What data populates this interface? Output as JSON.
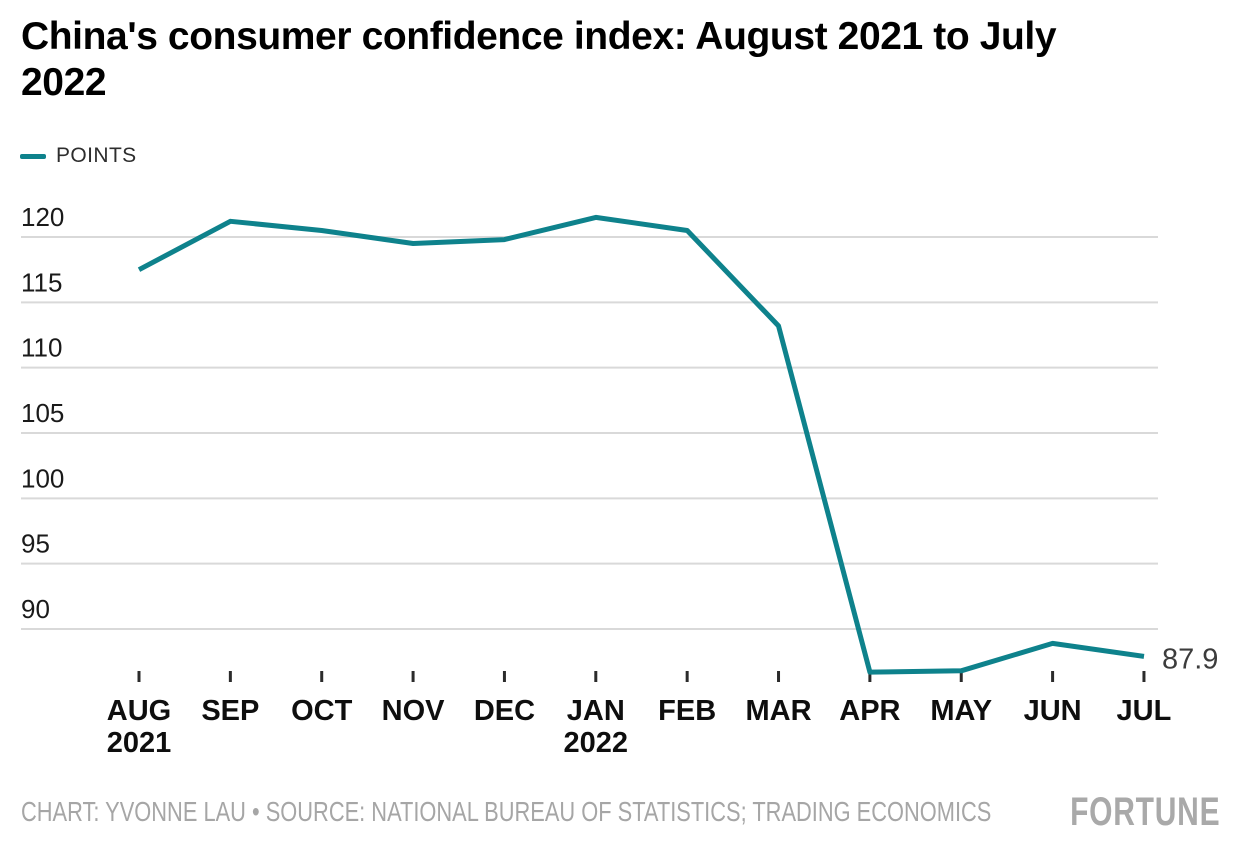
{
  "chart_data": {
    "type": "line",
    "title": "China's consumer confidence index: August 2021 to July 2022",
    "title_lines": [
      "China's consumer confidence index: August 2021 to July",
      "2022"
    ],
    "series_name": "POINTS",
    "categories": [
      "AUG",
      "SEP",
      "OCT",
      "NOV",
      "DEC",
      "JAN",
      "FEB",
      "MAR",
      "APR",
      "MAY",
      "JUN",
      "JUL"
    ],
    "category_year_labels": [
      {
        "index": 0,
        "year": "2021"
      },
      {
        "index": 5,
        "year": "2022"
      }
    ],
    "values": [
      117.5,
      121.2,
      120.5,
      119.5,
      119.8,
      121.5,
      120.5,
      113.2,
      86.7,
      86.8,
      88.9,
      87.9
    ],
    "end_label": "87.9",
    "yticks": [
      120,
      115,
      110,
      105,
      100,
      95,
      90
    ],
    "ylim": [
      85.5,
      122.5
    ],
    "grid": "horizontal-only",
    "legend_position": "top-left",
    "colors": {
      "line": "#0E828C",
      "grid": "#D9D9D9",
      "tick": "#2b2b2b",
      "y_axis_text": "#1a1a1a",
      "x_axis_text": "#0e0e0e",
      "end_label_text": "#3c3c3c",
      "title_text": "#000000",
      "credit_text": "#A6A6A6"
    }
  },
  "footer": {
    "credit": "CHART: YVONNE LAU • SOURCE: NATIONAL BUREAU OF STATISTICS; TRADING ECONOMICS",
    "brand": "FORTUNE"
  }
}
